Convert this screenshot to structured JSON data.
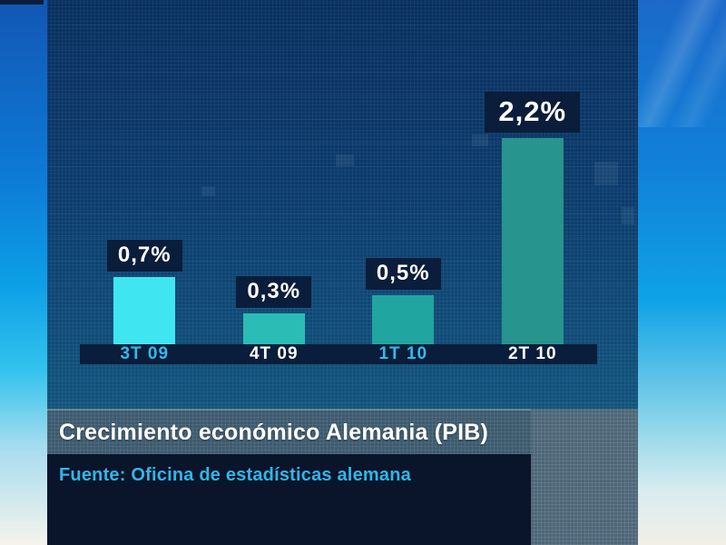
{
  "chart_data": {
    "type": "bar",
    "title": "Crecimiento económico Alemania (PIB)",
    "source": "Fuente: Oficina de estadísticas alemana",
    "categories": [
      "3T 09",
      "4T 09",
      "1T 10",
      "2T 10"
    ],
    "values": [
      0.7,
      0.3,
      0.5,
      2.2
    ],
    "value_labels": [
      "0,7%",
      "0,3%",
      "0,5%",
      "2,2%"
    ],
    "unit": "%",
    "highlight_index": 3,
    "ylim": [
      0,
      2.4
    ],
    "grid": false,
    "legend": false,
    "bar_colors": [
      "#3fe6f2",
      "#2bbcb6",
      "#21a5a0",
      "#27948e"
    ],
    "category_label_colors": [
      "#35b9e9",
      "#ffffff",
      "#35b9e9",
      "#ffffff"
    ]
  },
  "colors": {
    "accent_cyan": "#2fb7e7",
    "label_chip_bg": "#0a1d3a",
    "panel_navy": "#0d3b6b",
    "band_grey": "#4d6678",
    "source_panel_bg": "#0a142b"
  }
}
